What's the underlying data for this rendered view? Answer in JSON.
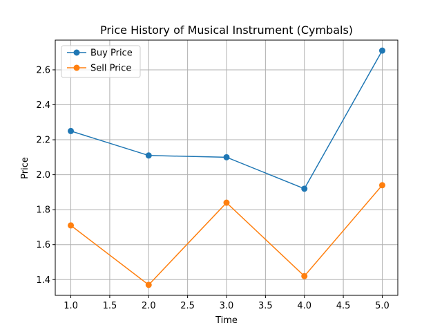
{
  "chart_data": {
    "type": "line",
    "title": "Price History of Musical Instrument (Cymbals)",
    "xlabel": "Time",
    "ylabel": "Price",
    "xlim": [
      0.8,
      5.2
    ],
    "ylim": [
      1.31,
      2.77
    ],
    "xticks": [
      1.0,
      1.5,
      2.0,
      2.5,
      3.0,
      3.5,
      4.0,
      4.5,
      5.0
    ],
    "xtick_labels": [
      "1.0",
      "1.5",
      "2.0",
      "2.5",
      "3.0",
      "3.5",
      "4.0",
      "4.5",
      "5.0"
    ],
    "yticks": [
      1.4,
      1.6,
      1.8,
      2.0,
      2.2,
      2.4,
      2.6
    ],
    "ytick_labels": [
      "1.4",
      "1.6",
      "1.8",
      "2.0",
      "2.2",
      "2.4",
      "2.6"
    ],
    "grid": true,
    "legend_position": "upper-left",
    "x": [
      1,
      2,
      3,
      4,
      5
    ],
    "series": [
      {
        "name": "Buy Price",
        "color": "#1f77b4",
        "marker": "circle",
        "values": [
          2.25,
          2.11,
          2.1,
          1.92,
          2.71
        ]
      },
      {
        "name": "Sell Price",
        "color": "#ff7f0e",
        "marker": "circle",
        "values": [
          1.71,
          1.37,
          1.84,
          1.42,
          1.94
        ]
      }
    ]
  }
}
